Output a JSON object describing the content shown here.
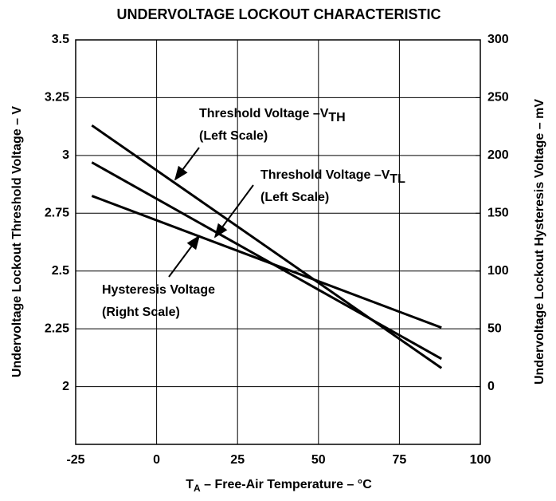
{
  "chart_data": {
    "type": "line",
    "title": "UNDERVOLTAGE LOCKOUT CHARACTERISTIC",
    "x_label": {
      "main": "T",
      "sub": "A",
      "rest": " – Free-Air Temperature – °C"
    },
    "y_label": "Undervoltage Lockout Threshold Voltage – V",
    "y2_label": "Undervoltage Lockout Hysteresis Voltage – mV",
    "x": [
      -20,
      88
    ],
    "series": [
      {
        "name": "Threshold Voltage –V",
        "sub": "TH",
        "scale": "(Left Scale)",
        "color": "#000000",
        "values": [
          3.13,
          2.08
        ]
      },
      {
        "name": "Threshold Voltage –V",
        "sub": "TL",
        "scale": "(Left Scale)",
        "color": "#000000",
        "values": [
          2.97,
          2.12
        ]
      },
      {
        "name": "Hysteresis Voltage",
        "scale": "(Right Scale)",
        "color": "#000000",
        "axis": "y2",
        "values": [
          165,
          51
        ]
      }
    ],
    "xlim": [
      -25,
      100
    ],
    "xticks": [
      -25,
      0,
      25,
      50,
      75,
      100
    ],
    "ylim": [
      1.75,
      3.5
    ],
    "yticks": [
      2,
      2.25,
      2.5,
      2.75,
      3,
      3.25,
      3.5
    ],
    "y2lim": [
      -50,
      300
    ],
    "y2ticks": [
      0,
      50,
      100,
      150,
      200,
      250,
      300
    ],
    "grid": true
  }
}
